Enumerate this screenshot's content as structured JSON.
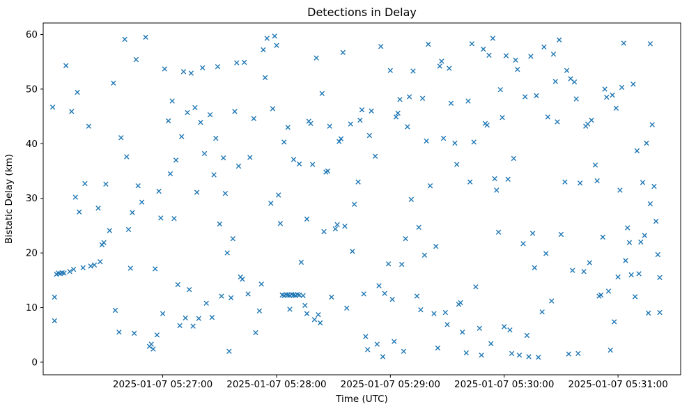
{
  "figure": {
    "background": "#ffffff"
  },
  "chart_data": {
    "type": "scatter",
    "title": "Detections in Delay",
    "xlabel": "Time (UTC)",
    "ylabel": "Bistatic Delay (km)",
    "marker": "x",
    "marker_color": "#1f77b4",
    "grid": false,
    "legend": "none",
    "x_unit": "seconds after 2025-01-07 05:26:00 UTC",
    "xlim_seconds": [
      -3,
      333
    ],
    "ylim": [
      -2.3,
      62.1
    ],
    "yticks": [
      0,
      10,
      20,
      30,
      40,
      50,
      60
    ],
    "xticks": [
      {
        "seconds": 60,
        "label": "2025-01-07 05:27:00"
      },
      {
        "seconds": 120,
        "label": "2025-01-07 05:28:00"
      },
      {
        "seconds": 180,
        "label": "2025-01-07 05:29:00"
      },
      {
        "seconds": 240,
        "label": "2025-01-07 05:30:00"
      },
      {
        "seconds": 300,
        "label": "2025-01-07 05:31:00"
      }
    ],
    "points": [
      [
        2,
        46.7
      ],
      [
        3,
        7.6
      ],
      [
        3,
        11.9
      ],
      [
        4,
        16.1
      ],
      [
        5,
        16.3
      ],
      [
        6,
        16.2
      ],
      [
        7,
        16.4
      ],
      [
        8,
        16.3
      ],
      [
        9,
        54.3
      ],
      [
        11,
        16.6
      ],
      [
        12,
        45.9
      ],
      [
        13,
        17.0
      ],
      [
        14,
        30.2
      ],
      [
        15,
        49.4
      ],
      [
        16,
        27.5
      ],
      [
        18,
        17.3
      ],
      [
        19,
        32.7
      ],
      [
        21,
        43.2
      ],
      [
        22,
        17.6
      ],
      [
        24,
        17.8
      ],
      [
        26,
        28.2
      ],
      [
        27,
        18.4
      ],
      [
        28,
        21.5
      ],
      [
        29,
        21.9
      ],
      [
        30,
        32.6
      ],
      [
        32,
        24.1
      ],
      [
        34,
        51.1
      ],
      [
        35,
        9.5
      ],
      [
        37,
        5.5
      ],
      [
        38,
        41.1
      ],
      [
        40,
        59.1
      ],
      [
        41,
        37.6
      ],
      [
        42,
        24.3
      ],
      [
        43,
        17.2
      ],
      [
        44,
        27.4
      ],
      [
        45,
        5.3
      ],
      [
        46,
        55.4
      ],
      [
        47,
        32.3
      ],
      [
        49,
        29.3
      ],
      [
        51,
        59.5
      ],
      [
        53,
        2.9
      ],
      [
        54,
        3.3
      ],
      [
        55,
        2.4
      ],
      [
        56,
        17.1
      ],
      [
        57,
        5.0
      ],
      [
        58,
        31.3
      ],
      [
        59,
        26.4
      ],
      [
        60,
        8.9
      ],
      [
        61,
        53.7
      ],
      [
        63,
        44.2
      ],
      [
        64,
        34.5
      ],
      [
        65,
        47.8
      ],
      [
        66,
        26.3
      ],
      [
        67,
        37.0
      ],
      [
        68,
        14.2
      ],
      [
        69,
        6.7
      ],
      [
        70,
        41.3
      ],
      [
        71,
        53.2
      ],
      [
        72,
        8.1
      ],
      [
        73,
        45.7
      ],
      [
        74,
        13.3
      ],
      [
        75,
        52.9
      ],
      [
        76,
        6.6
      ],
      [
        77,
        46.6
      ],
      [
        78,
        31.1
      ],
      [
        79,
        8.0
      ],
      [
        80,
        43.9
      ],
      [
        81,
        53.9
      ],
      [
        82,
        38.2
      ],
      [
        83,
        10.8
      ],
      [
        85,
        45.3
      ],
      [
        86,
        8.2
      ],
      [
        87,
        34.3
      ],
      [
        88,
        41.0
      ],
      [
        89,
        54.1
      ],
      [
        90,
        25.3
      ],
      [
        91,
        12.1
      ],
      [
        92,
        37.4
      ],
      [
        93,
        30.9
      ],
      [
        94,
        20.0
      ],
      [
        95,
        2.0
      ],
      [
        96,
        11.8
      ],
      [
        97,
        22.6
      ],
      [
        98,
        45.9
      ],
      [
        99,
        54.8
      ],
      [
        100,
        35.9
      ],
      [
        101,
        15.6
      ],
      [
        102,
        15.2
      ],
      [
        103,
        54.9
      ],
      [
        105,
        12.5
      ],
      [
        106,
        37.5
      ],
      [
        108,
        44.6
      ],
      [
        109,
        5.4
      ],
      [
        111,
        9.4
      ],
      [
        112,
        14.3
      ],
      [
        113,
        57.2
      ],
      [
        114,
        52.1
      ],
      [
        115,
        59.3
      ],
      [
        117,
        29.1
      ],
      [
        118,
        46.4
      ],
      [
        119,
        59.7
      ],
      [
        120,
        58.0
      ],
      [
        121,
        30.6
      ],
      [
        122,
        25.4
      ],
      [
        123,
        12.3
      ],
      [
        124,
        12.2
      ],
      [
        124,
        40.3
      ],
      [
        125,
        12.4
      ],
      [
        126,
        12.3
      ],
      [
        126,
        43.0
      ],
      [
        127,
        12.2
      ],
      [
        127,
        9.7
      ],
      [
        128,
        12.4
      ],
      [
        129,
        12.3
      ],
      [
        129,
        37.1
      ],
      [
        130,
        12.2
      ],
      [
        131,
        12.4
      ],
      [
        132,
        12.3
      ],
      [
        132,
        36.3
      ],
      [
        133,
        18.3
      ],
      [
        134,
        12.2
      ],
      [
        135,
        10.4
      ],
      [
        136,
        8.9
      ],
      [
        136,
        26.2
      ],
      [
        137,
        44.1
      ],
      [
        138,
        43.7
      ],
      [
        139,
        36.2
      ],
      [
        140,
        7.8
      ],
      [
        141,
        55.7
      ],
      [
        142,
        8.7
      ],
      [
        143,
        7.2
      ],
      [
        144,
        49.2
      ],
      [
        145,
        23.9
      ],
      [
        146,
        34.8
      ],
      [
        147,
        35.0
      ],
      [
        148,
        43.2
      ],
      [
        149,
        11.9
      ],
      [
        151,
        24.4
      ],
      [
        152,
        25.2
      ],
      [
        153,
        40.4
      ],
      [
        154,
        40.9
      ],
      [
        155,
        56.7
      ],
      [
        156,
        24.9
      ],
      [
        157,
        9.9
      ],
      [
        159,
        43.6
      ],
      [
        160,
        20.3
      ],
      [
        161,
        28.9
      ],
      [
        163,
        33.0
      ],
      [
        164,
        44.3
      ],
      [
        165,
        46.2
      ],
      [
        166,
        12.5
      ],
      [
        167,
        4.7
      ],
      [
        168,
        2.3
      ],
      [
        169,
        41.5
      ],
      [
        170,
        46.0
      ],
      [
        172,
        37.7
      ],
      [
        173,
        3.3
      ],
      [
        174,
        14.0
      ],
      [
        175,
        57.8
      ],
      [
        176,
        1.0
      ],
      [
        177,
        12.6
      ],
      [
        179,
        18.0
      ],
      [
        180,
        53.4
      ],
      [
        181,
        11.5
      ],
      [
        182,
        3.8
      ],
      [
        183,
        44.9
      ],
      [
        184,
        45.6
      ],
      [
        185,
        48.1
      ],
      [
        186,
        17.9
      ],
      [
        187,
        2.0
      ],
      [
        188,
        22.6
      ],
      [
        189,
        43.1
      ],
      [
        190,
        48.6
      ],
      [
        191,
        29.8
      ],
      [
        192,
        53.3
      ],
      [
        194,
        12.1
      ],
      [
        195,
        24.7
      ],
      [
        196,
        9.6
      ],
      [
        197,
        48.3
      ],
      [
        198,
        19.6
      ],
      [
        199,
        40.5
      ],
      [
        200,
        58.2
      ],
      [
        201,
        32.3
      ],
      [
        203,
        8.9
      ],
      [
        204,
        21.2
      ],
      [
        205,
        2.6
      ],
      [
        206,
        54.2
      ],
      [
        207,
        55.1
      ],
      [
        208,
        41.0
      ],
      [
        209,
        9.1
      ],
      [
        210,
        6.9
      ],
      [
        211,
        53.8
      ],
      [
        212,
        47.4
      ],
      [
        214,
        40.1
      ],
      [
        215,
        36.2
      ],
      [
        216,
        10.6
      ],
      [
        217,
        10.9
      ],
      [
        218,
        5.5
      ],
      [
        220,
        1.7
      ],
      [
        221,
        47.8
      ],
      [
        222,
        33.0
      ],
      [
        223,
        58.3
      ],
      [
        224,
        40.3
      ],
      [
        225,
        13.8
      ],
      [
        227,
        6.2
      ],
      [
        228,
        1.3
      ],
      [
        229,
        57.3
      ],
      [
        230,
        43.7
      ],
      [
        231,
        43.4
      ],
      [
        232,
        56.2
      ],
      [
        233,
        3.4
      ],
      [
        234,
        59.3
      ],
      [
        235,
        33.6
      ],
      [
        236,
        31.5
      ],
      [
        237,
        23.8
      ],
      [
        238,
        49.9
      ],
      [
        239,
        44.8
      ],
      [
        240,
        6.5
      ],
      [
        241,
        56.1
      ],
      [
        242,
        33.5
      ],
      [
        243,
        5.9
      ],
      [
        244,
        1.6
      ],
      [
        245,
        37.3
      ],
      [
        246,
        55.3
      ],
      [
        247,
        53.6
      ],
      [
        248,
        1.3
      ],
      [
        250,
        21.7
      ],
      [
        251,
        48.6
      ],
      [
        252,
        4.9
      ],
      [
        253,
        1.0
      ],
      [
        254,
        56.0
      ],
      [
        255,
        23.6
      ],
      [
        256,
        17.3
      ],
      [
        257,
        48.8
      ],
      [
        258,
        0.9
      ],
      [
        260,
        9.2
      ],
      [
        261,
        57.7
      ],
      [
        262,
        19.9
      ],
      [
        263,
        44.9
      ],
      [
        265,
        11.2
      ],
      [
        266,
        56.4
      ],
      [
        267,
        51.4
      ],
      [
        268,
        44.0
      ],
      [
        269,
        59.0
      ],
      [
        270,
        23.4
      ],
      [
        272,
        33.0
      ],
      [
        273,
        53.4
      ],
      [
        274,
        1.5
      ],
      [
        275,
        51.9
      ],
      [
        276,
        16.8
      ],
      [
        277,
        51.3
      ],
      [
        278,
        48.2
      ],
      [
        279,
        1.6
      ],
      [
        280,
        32.8
      ],
      [
        282,
        16.6
      ],
      [
        283,
        43.2
      ],
      [
        284,
        43.6
      ],
      [
        285,
        18.2
      ],
      [
        286,
        44.3
      ],
      [
        288,
        36.1
      ],
      [
        289,
        33.2
      ],
      [
        290,
        12.1
      ],
      [
        291,
        12.3
      ],
      [
        292,
        22.9
      ],
      [
        293,
        50.0
      ],
      [
        294,
        48.5
      ],
      [
        295,
        13.0
      ],
      [
        296,
        2.2
      ],
      [
        297,
        48.9
      ],
      [
        298,
        7.4
      ],
      [
        299,
        46.5
      ],
      [
        300,
        15.6
      ],
      [
        301,
        31.5
      ],
      [
        302,
        50.3
      ],
      [
        303,
        58.4
      ],
      [
        304,
        18.6
      ],
      [
        305,
        24.6
      ],
      [
        306,
        21.9
      ],
      [
        307,
        16.0
      ],
      [
        308,
        50.9
      ],
      [
        309,
        12.0
      ],
      [
        310,
        38.7
      ],
      [
        311,
        16.2
      ],
      [
        312,
        22.0
      ],
      [
        313,
        32.9
      ],
      [
        314,
        23.2
      ],
      [
        315,
        40.1
      ],
      [
        316,
        9.0
      ],
      [
        317,
        58.3
      ],
      [
        317,
        29.0
      ],
      [
        318,
        43.5
      ],
      [
        319,
        32.2
      ],
      [
        320,
        25.8
      ],
      [
        321,
        19.7
      ],
      [
        322,
        15.5
      ],
      [
        322,
        9.1
      ]
    ]
  }
}
